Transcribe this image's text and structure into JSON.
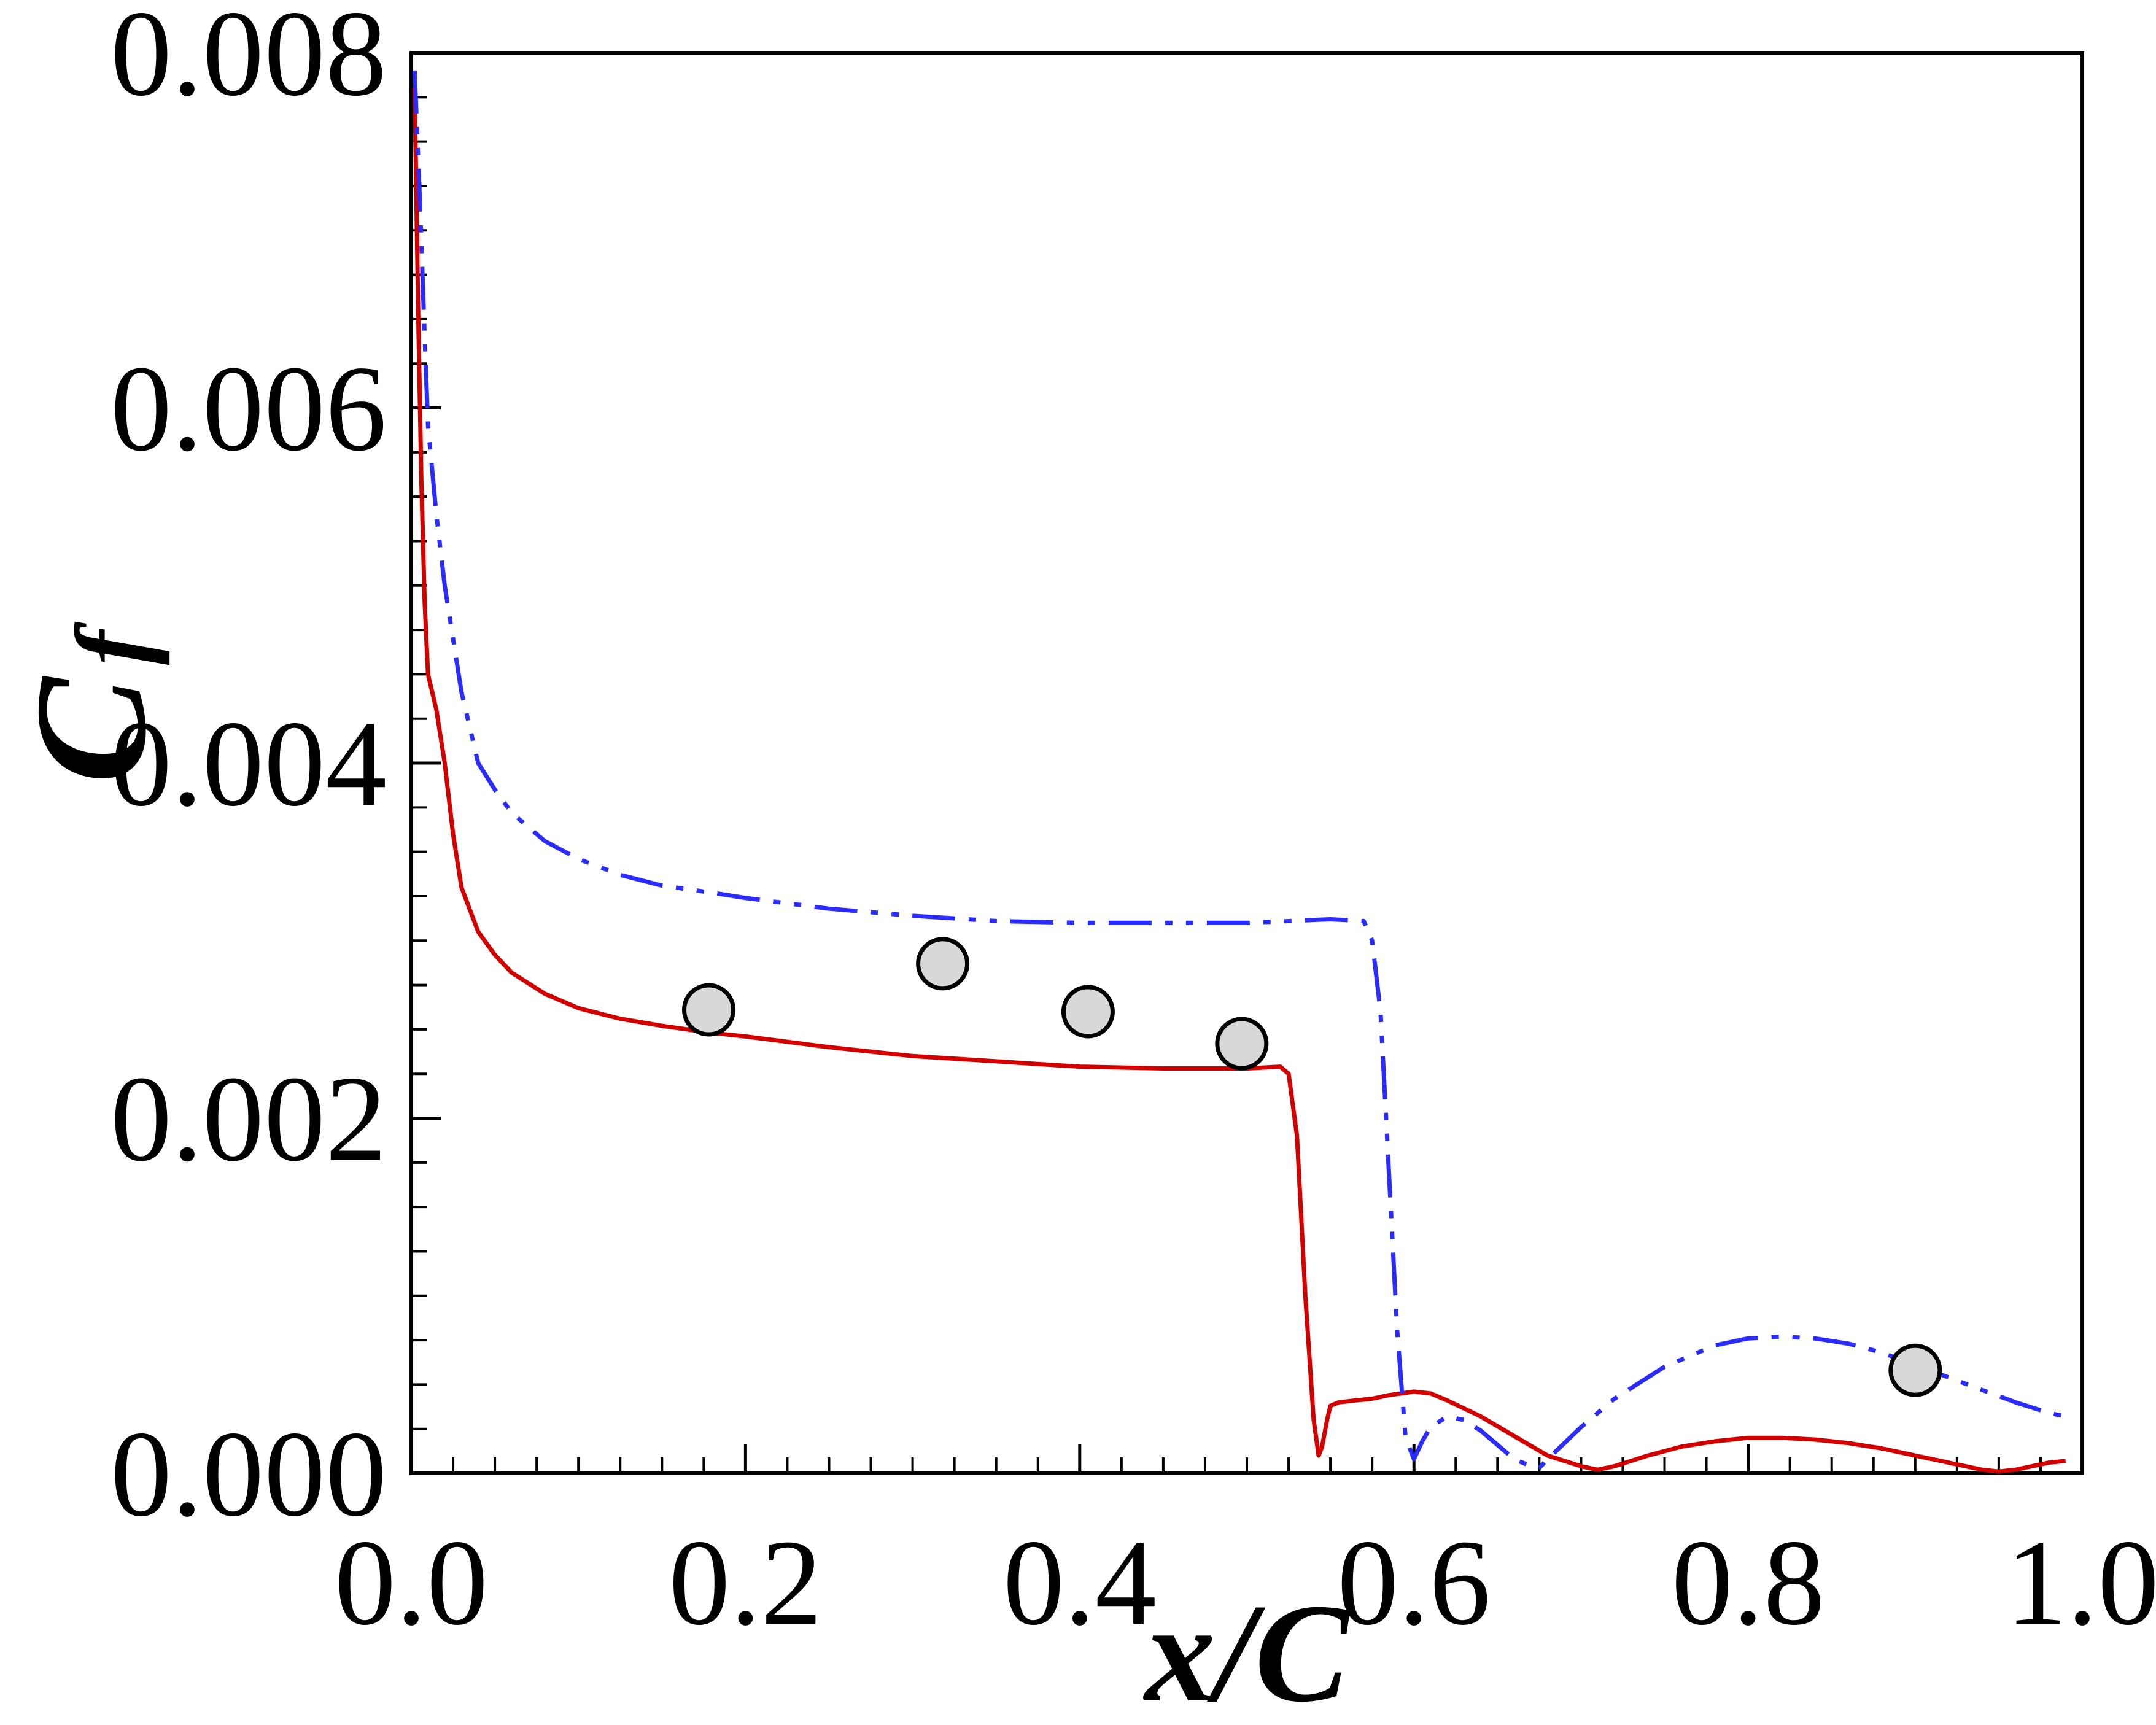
{
  "chart_data": {
    "type": "line",
    "xlabel": "x/C",
    "ylabel_main": "C",
    "ylabel_sub": "f",
    "xlim": [
      0.0,
      1.0
    ],
    "ylim": [
      0.0,
      0.008
    ],
    "x_ticks": [
      "0.0",
      "0.2",
      "0.4",
      "0.6",
      "0.8",
      "1.0"
    ],
    "y_ticks": [
      "0.000",
      "0.002",
      "0.004",
      "0.006",
      "0.008"
    ],
    "x_tick_values": [
      0.0,
      0.2,
      0.4,
      0.6,
      0.8,
      1.0
    ],
    "y_tick_values": [
      0.0,
      0.002,
      0.004,
      0.006,
      0.008
    ],
    "grid": false,
    "legend": "none",
    "colors": {
      "series_red": "#d40000",
      "series_blue": "#2b2bff",
      "marker_fill": "#d8d8d8",
      "marker_edge": "#000000"
    },
    "series": [
      {
        "style": "solid",
        "color": "#d40000",
        "x": [
          0.002,
          0.004,
          0.006,
          0.008,
          0.01,
          0.015,
          0.02,
          0.025,
          0.03,
          0.04,
          0.05,
          0.06,
          0.08,
          0.1,
          0.125,
          0.15,
          0.18,
          0.2,
          0.25,
          0.3,
          0.35,
          0.4,
          0.45,
          0.5,
          0.52,
          0.525,
          0.53,
          0.535,
          0.54,
          0.543,
          0.545,
          0.548,
          0.55,
          0.555,
          0.565,
          0.575,
          0.585,
          0.6,
          0.61,
          0.62,
          0.64,
          0.66,
          0.68,
          0.7,
          0.71,
          0.72,
          0.74,
          0.76,
          0.78,
          0.8,
          0.82,
          0.84,
          0.86,
          0.88,
          0.9,
          0.92,
          0.94,
          0.95,
          0.96,
          0.97,
          0.98,
          0.99
        ],
        "y": [
          0.0078,
          0.0066,
          0.0056,
          0.0049,
          0.0045,
          0.0043,
          0.004,
          0.0036,
          0.0033,
          0.00305,
          0.00292,
          0.00282,
          0.0027,
          0.00262,
          0.00256,
          0.00252,
          0.00248,
          0.00246,
          0.0024,
          0.00235,
          0.00232,
          0.00229,
          0.00228,
          0.00228,
          0.00229,
          0.00225,
          0.0019,
          0.001,
          0.0003,
          0.0001,
          0.00015,
          0.0003,
          0.00038,
          0.0004,
          0.00041,
          0.00042,
          0.00044,
          0.00046,
          0.00045,
          0.00041,
          0.00032,
          0.00021,
          0.0001,
          4e-05,
          2e-05,
          4e-05,
          0.0001,
          0.00015,
          0.00018,
          0.0002,
          0.0002,
          0.00019,
          0.00017,
          0.00014,
          0.0001,
          6e-05,
          2e-05,
          1e-05,
          2e-05,
          4e-05,
          6e-05,
          7e-05
        ]
      },
      {
        "style": "dashdotdot",
        "color": "#2b2bff",
        "x": [
          0.002,
          0.005,
          0.008,
          0.01,
          0.015,
          0.02,
          0.025,
          0.03,
          0.04,
          0.05,
          0.06,
          0.08,
          0.1,
          0.125,
          0.15,
          0.18,
          0.2,
          0.25,
          0.3,
          0.35,
          0.4,
          0.45,
          0.5,
          0.55,
          0.57,
          0.575,
          0.58,
          0.585,
          0.59,
          0.595,
          0.6,
          0.605,
          0.61,
          0.62,
          0.63,
          0.64,
          0.65,
          0.66,
          0.67,
          0.675,
          0.68,
          0.7,
          0.72,
          0.75,
          0.78,
          0.8,
          0.82,
          0.84,
          0.86,
          0.88,
          0.9,
          0.92,
          0.94,
          0.96,
          0.98,
          0.99
        ],
        "y": [
          0.0079,
          0.0072,
          0.0064,
          0.0059,
          0.0054,
          0.005,
          0.0047,
          0.0044,
          0.004,
          0.00385,
          0.00372,
          0.00356,
          0.00346,
          0.00337,
          0.00331,
          0.00327,
          0.00324,
          0.00318,
          0.00314,
          0.00311,
          0.0031,
          0.0031,
          0.0031,
          0.00312,
          0.00311,
          0.003,
          0.0026,
          0.0017,
          0.0008,
          0.0002,
          8e-05,
          0.00018,
          0.00026,
          0.00032,
          0.0003,
          0.00024,
          0.00016,
          8e-05,
          4e-05,
          3e-05,
          8e-05,
          0.00026,
          0.00042,
          0.0006,
          0.00072,
          0.00076,
          0.00077,
          0.00076,
          0.00073,
          0.00068,
          0.00061,
          0.00054,
          0.00047,
          0.0004,
          0.00034,
          0.00032
        ]
      }
    ],
    "points": {
      "style": "marker",
      "x": [
        0.178,
        0.318,
        0.405,
        0.497,
        0.9
      ],
      "y": [
        0.00261,
        0.00287,
        0.0026,
        0.00242,
        0.00058
      ]
    }
  }
}
